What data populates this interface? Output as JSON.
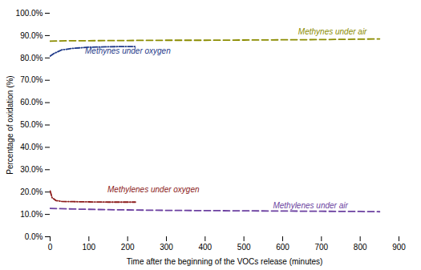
{
  "chart_data": {
    "type": "line",
    "xlabel": "Time after the beginning of the VOCs release (minutes)",
    "ylabel": "Percentage of oxidation (%)",
    "xlim": [
      0,
      900
    ],
    "ylim": [
      0.0,
      1.0
    ],
    "xticks": [
      0,
      100,
      200,
      300,
      400,
      500,
      600,
      700,
      800,
      900
    ],
    "yticks": [
      {
        "value": 0.0,
        "label": "0.0%"
      },
      {
        "value": 0.1,
        "label": "10.0%"
      },
      {
        "value": 0.2,
        "label": "20.0%"
      },
      {
        "value": 0.3,
        "label": "30.0%"
      },
      {
        "value": 0.4,
        "label": "40.0%"
      },
      {
        "value": 0.5,
        "label": "50.0%"
      },
      {
        "value": 0.6,
        "label": "60.0%"
      },
      {
        "value": 0.7,
        "label": "70.0%"
      },
      {
        "value": 0.8,
        "label": "80.0%"
      },
      {
        "value": 0.9,
        "label": "90.0%"
      },
      {
        "value": 1.0,
        "label": "100.0%"
      }
    ],
    "grid": false,
    "series": [
      {
        "color": "#8B8C00",
        "line_style": "dashed",
        "x": [
          0,
          50,
          100,
          200,
          300,
          400,
          500,
          600,
          700,
          800,
          850
        ],
        "values": [
          0.875,
          0.877,
          0.877,
          0.878,
          0.879,
          0.879,
          0.88,
          0.881,
          0.882,
          0.884,
          0.885
        ]
      },
      {
        "color": "#1F3A8A",
        "line_style": "dashdot",
        "x": [
          0,
          10,
          30,
          60,
          100,
          150,
          200,
          220
        ],
        "values": [
          0.808,
          0.82,
          0.836,
          0.843,
          0.848,
          0.85,
          0.851,
          0.851
        ]
      },
      {
        "color": "#8B1A1A",
        "line_style": "dashdot",
        "x": [
          0,
          5,
          15,
          30,
          60,
          100,
          150,
          175,
          210,
          220
        ],
        "values": [
          0.205,
          0.175,
          0.162,
          0.158,
          0.157,
          0.156,
          0.155,
          0.155,
          0.155,
          0.155
        ]
      },
      {
        "color": "#6B3FA0",
        "line_style": "dashed",
        "x": [
          0,
          20,
          60,
          120,
          200,
          300,
          400,
          500,
          600,
          700,
          800,
          850
        ],
        "values": [
          0.127,
          0.126,
          0.124,
          0.122,
          0.12,
          0.118,
          0.117,
          0.116,
          0.115,
          0.114,
          0.113,
          0.112
        ]
      }
    ],
    "annotations": [
      {
        "text": "Methynes under air",
        "x": 640,
        "y": 0.906,
        "color": "#8B8C00"
      },
      {
        "text": "Methynes under oxygen",
        "x": 90,
        "y": 0.818,
        "color": "#1F3A8A"
      },
      {
        "text": "Methylenes under oxygen",
        "x": 148,
        "y": 0.2,
        "color": "#8B1A1A"
      },
      {
        "text": "Methylenes under air",
        "x": 575,
        "y": 0.127,
        "color": "#6B3FA0"
      }
    ]
  }
}
